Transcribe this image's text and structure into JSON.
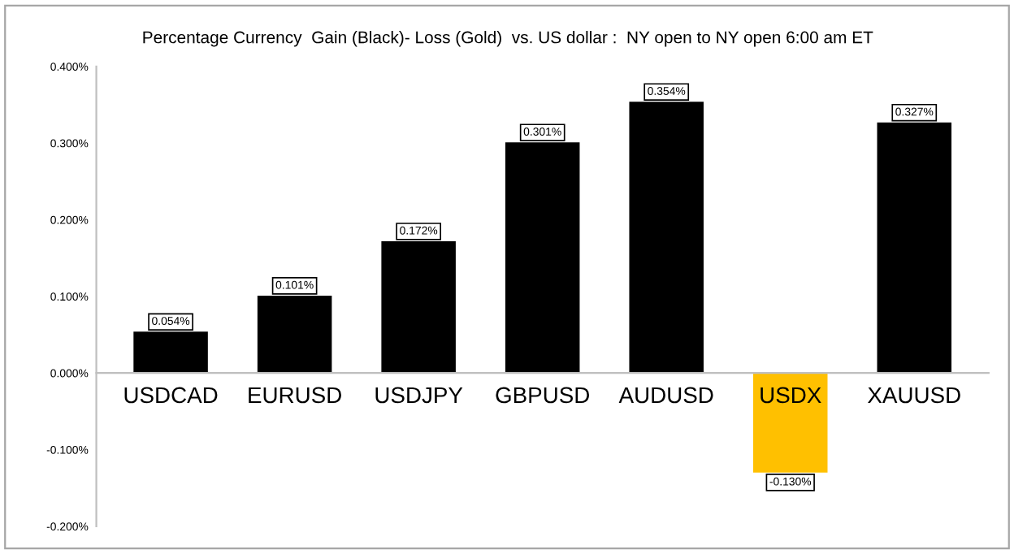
{
  "chart_data": {
    "type": "bar",
    "title": "Percentage Currency  Gain (Black)- Loss (Gold)  vs. US dollar :  NY open to NY open 6:00 am ET",
    "categories": [
      "USDCAD",
      "EURUSD",
      "USDJPY",
      "GBPUSD",
      "AUDUSD",
      "USDX",
      "XAUUSD"
    ],
    "values": [
      0.054,
      0.101,
      0.172,
      0.301,
      0.354,
      -0.13,
      0.327
    ],
    "colors": [
      "#000000",
      "#000000",
      "#000000",
      "#000000",
      "#000000",
      "#ffc000",
      "#000000"
    ],
    "value_labels": [
      "0.054%",
      "0.101%",
      "0.172%",
      "0.301%",
      "0.354%",
      "-0.130%",
      "0.327%"
    ],
    "ylim": [
      -0.2,
      0.4
    ],
    "yticks": [
      {
        "value": -0.2,
        "label": "-0.200%"
      },
      {
        "value": -0.1,
        "label": "-0.100%"
      },
      {
        "value": 0.0,
        "label": "0.000%"
      },
      {
        "value": 0.1,
        "label": "0.100%"
      },
      {
        "value": 0.2,
        "label": "0.200%"
      },
      {
        "value": 0.3,
        "label": "0.300%"
      },
      {
        "value": 0.4,
        "label": "0.400%"
      }
    ],
    "grid": false,
    "legend": false
  }
}
